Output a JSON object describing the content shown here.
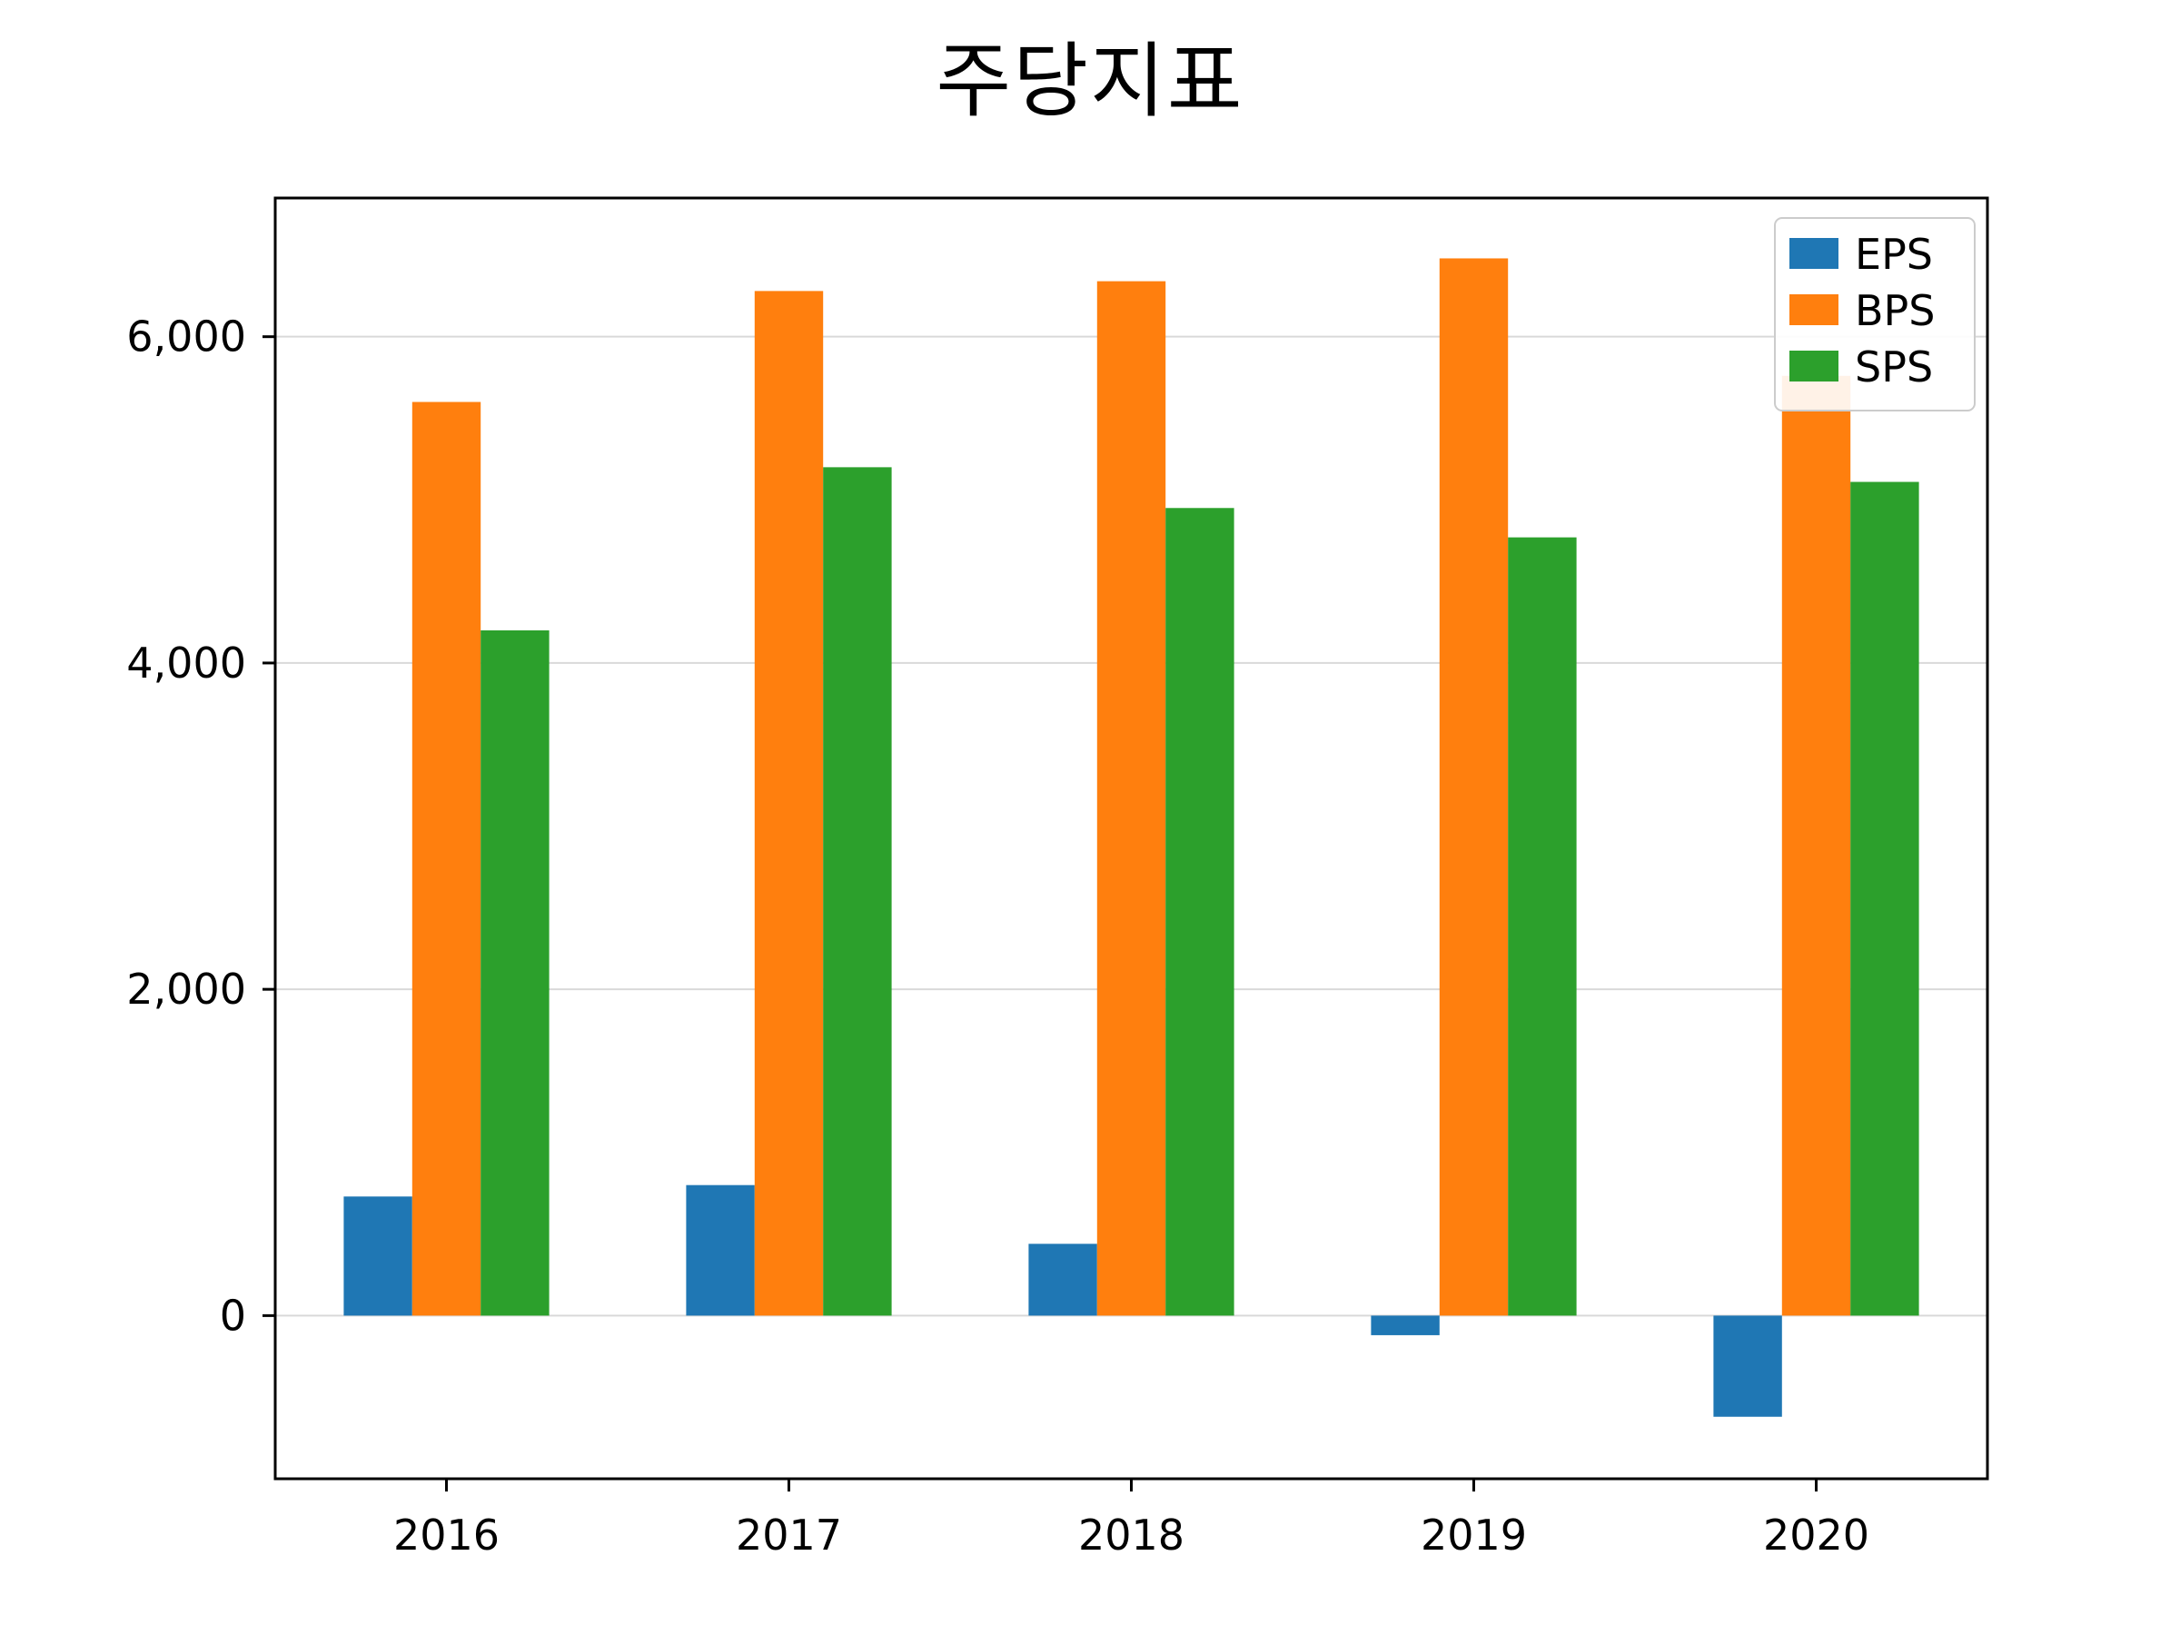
{
  "title": "주당지표",
  "chart_data": {
    "type": "bar",
    "title": "주당지표",
    "categories": [
      "2016",
      "2017",
      "2018",
      "2019",
      "2020"
    ],
    "series": [
      {
        "name": "EPS",
        "color": "#1f77b4",
        "values": [
          730,
          800,
          440,
          -120,
          -620
        ]
      },
      {
        "name": "BPS",
        "color": "#ff7f0e",
        "values": [
          5600,
          6280,
          6340,
          6480,
          5760
        ]
      },
      {
        "name": "SPS",
        "color": "#2ca02c",
        "values": [
          4200,
          5200,
          4950,
          4770,
          5110
        ]
      }
    ],
    "xlabel": "",
    "ylabel": "",
    "ylim": [
      -1000,
      6850
    ],
    "yticks": [
      0,
      2000,
      4000,
      6000
    ],
    "ytick_labels": [
      "0",
      "2,000",
      "4,000",
      "6,000"
    ],
    "grid": true,
    "legend_position": "upper right"
  }
}
